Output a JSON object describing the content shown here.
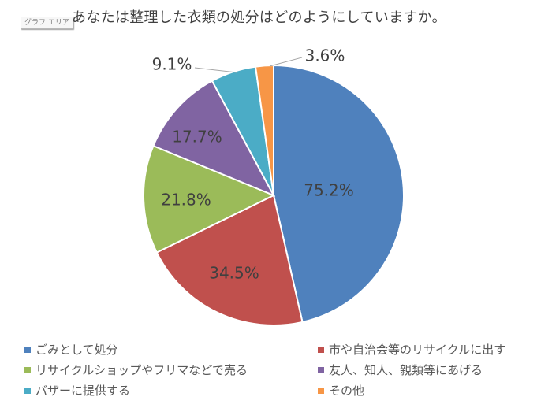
{
  "chart_area_label": "グラフ エリア",
  "title": "あなたは整理した衣類の処分はどのようにしていますか。",
  "chart_data": {
    "type": "pie",
    "title": "あなたは整理した衣類の処分はどのようにしていますか。",
    "categories": [
      "ごみとして処分",
      "市や自治会等のリサイクルに出す",
      "リサイクルショップやフリマなどで売る",
      "友人、知人、親類等にあげる",
      "バザーに提供する",
      "その他"
    ],
    "values": [
      75.2,
      34.5,
      21.8,
      17.7,
      9.1,
      3.6
    ],
    "labels": [
      "75.2%",
      "34.5%",
      "21.8%",
      "17.7%",
      "9.1%",
      "3.6%"
    ],
    "colors": [
      "#4f81bd",
      "#c0504d",
      "#9bbb59",
      "#8064a2",
      "#4bacc6",
      "#f79646"
    ],
    "start_angle": "12 o'clock",
    "direction": "clockwise",
    "legend_position": "bottom"
  },
  "legend": [
    {
      "label": "ごみとして処分",
      "color": "#4f81bd"
    },
    {
      "label": "市や自治会等のリサイクルに出す",
      "color": "#c0504d"
    },
    {
      "label": "リサイクルショップやフリマなどで売る",
      "color": "#9bbb59"
    },
    {
      "label": "友人、知人、親類等にあげる",
      "color": "#8064a2"
    },
    {
      "label": "バザーに提供する",
      "color": "#4bacc6"
    },
    {
      "label": "その他",
      "color": "#f79646"
    }
  ]
}
